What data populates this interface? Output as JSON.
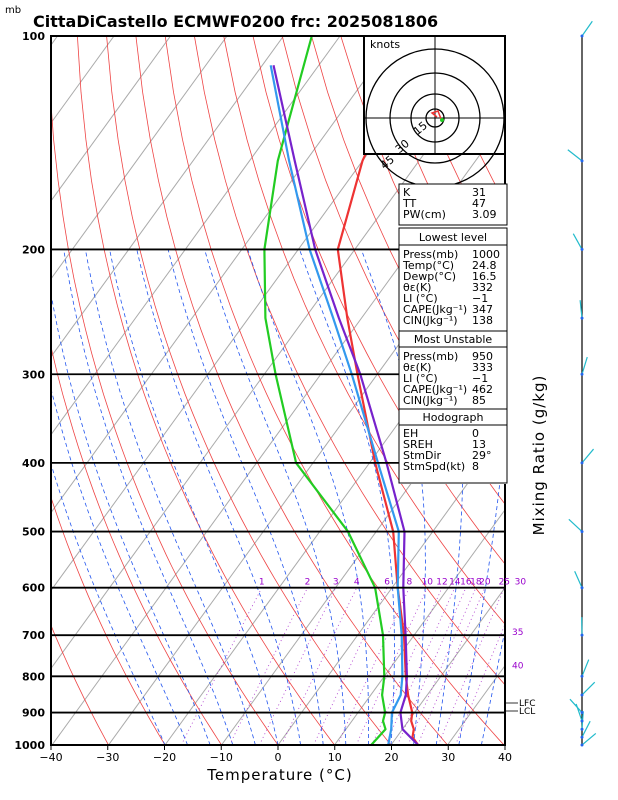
{
  "chart_data": {
    "type": "line",
    "title": "CittaDiCastello ECMWF0200 frc: 2025081806",
    "units_top": "mb",
    "xlabel": "Temperature (°C)",
    "ylabel_right": "Mixing Ratio (g/kg)",
    "xlim": [
      -40,
      40
    ],
    "pressure_range": [
      1000,
      100
    ],
    "x_ticks": [
      "−40",
      "−30",
      "−20",
      "−10",
      "0",
      "10",
      "20",
      "30",
      "40"
    ],
    "pressure_ticks": [
      "100",
      "200",
      "300",
      "400",
      "500",
      "600",
      "700",
      "800",
      "900",
      "1000"
    ],
    "mixing_ratio_labels": [
      "1",
      "2",
      "3",
      "4",
      "6",
      "8",
      "10",
      "12",
      "14",
      "16",
      "18",
      "20",
      "25",
      "30"
    ],
    "theta_e_labels": [
      "35",
      "40"
    ],
    "level_labels": [
      "LFC",
      "LCL"
    ],
    "series": [
      {
        "name": "Temperature",
        "color": "#ee3333",
        "points": [
          [
            1000,
            24.8
          ],
          [
            975,
            22.8
          ],
          [
            950,
            22.0
          ],
          [
            925,
            20.5
          ],
          [
            900,
            19.6
          ],
          [
            850,
            16.6
          ],
          [
            800,
            13.8
          ],
          [
            700,
            8.2
          ],
          [
            600,
            1.0
          ],
          [
            500,
            -7.0
          ],
          [
            400,
            -19.0
          ],
          [
            300,
            -33.5
          ],
          [
            250,
            -42.5
          ],
          [
            200,
            -53.0
          ],
          [
            150,
            -60.0
          ],
          [
            100,
            -66.0
          ]
        ]
      },
      {
        "name": "Dewpoint",
        "color": "#22cc22",
        "points": [
          [
            1000,
            16.5
          ],
          [
            950,
            17.0
          ],
          [
            925,
            15.5
          ],
          [
            900,
            14.8
          ],
          [
            850,
            12.0
          ],
          [
            800,
            10.0
          ],
          [
            700,
            4.5
          ],
          [
            600,
            -3.0
          ],
          [
            500,
            -15.0
          ],
          [
            400,
            -33.0
          ],
          [
            300,
            -48.0
          ],
          [
            250,
            -57.0
          ],
          [
            200,
            -66.0
          ],
          [
            150,
            -75.0
          ],
          [
            100,
            -85.0
          ]
        ]
      },
      {
        "name": "Parcel",
        "color": "#7722cc",
        "points": [
          [
            1000,
            24.8
          ],
          [
            950,
            20.0
          ],
          [
            900,
            17.5
          ],
          [
            850,
            16.2
          ],
          [
            800,
            14.0
          ],
          [
            700,
            8.5
          ],
          [
            600,
            2.0
          ],
          [
            500,
            -5.0
          ],
          [
            400,
            -17.0
          ],
          [
            300,
            -33.0
          ],
          [
            250,
            -44.0
          ],
          [
            200,
            -57.0
          ],
          [
            150,
            -72.0
          ],
          [
            110,
            -88.0
          ]
        ]
      },
      {
        "name": "Wet bulb",
        "color": "#3399ee",
        "points": [
          [
            1000,
            19.5
          ],
          [
            950,
            18.0
          ],
          [
            900,
            16.0
          ],
          [
            850,
            15.3
          ],
          [
            800,
            13.2
          ],
          [
            700,
            7.8
          ],
          [
            600,
            1.0
          ],
          [
            500,
            -6.0
          ],
          [
            400,
            -18.5
          ],
          [
            300,
            -34.5
          ],
          [
            250,
            -45.0
          ],
          [
            200,
            -58.0
          ],
          [
            150,
            -73.0
          ],
          [
            110,
            -88.5
          ]
        ]
      }
    ],
    "grid": true
  },
  "hodograph": {
    "units": "knots",
    "ring_labels": [
      "15",
      "30",
      "45"
    ]
  },
  "indices": {
    "top": [
      {
        "label": "K",
        "value": "31"
      },
      {
        "label": "TT",
        "value": "47"
      },
      {
        "label": "PW(cm)",
        "value": "3.09"
      }
    ],
    "lowest_title": "Lowest level",
    "lowest": [
      {
        "label": "Press(mb)",
        "value": "1000"
      },
      {
        "label": "Temp(°C)",
        "value": "24.8"
      },
      {
        "label": "Dewp(°C)",
        "value": "16.5"
      },
      {
        "label": "θε(K)",
        "value": "332"
      },
      {
        "label": "LI (°C)",
        "value": "−1"
      },
      {
        "label": "CAPE(Jkg⁻¹)",
        "value": "347"
      },
      {
        "label": "CIN(Jkg⁻¹)",
        "value": "138"
      }
    ],
    "unstable_title": "Most Unstable",
    "unstable": [
      {
        "label": "Press(mb)",
        "value": "950"
      },
      {
        "label": "θε(K)",
        "value": "333"
      },
      {
        "label": "LI (°C)",
        "value": "−1"
      },
      {
        "label": "CAPE(Jkg⁻¹)",
        "value": "462"
      },
      {
        "label": "CIN(Jkg⁻¹)",
        "value": "85"
      }
    ],
    "hodo_title": "Hodograph",
    "hodo": [
      {
        "label": "EH",
        "value": "0"
      },
      {
        "label": "SREH",
        "value": "13"
      },
      {
        "label": "StmDir",
        "value": "29°"
      },
      {
        "label": "StmSpd(kt)",
        "value": "8"
      }
    ]
  }
}
